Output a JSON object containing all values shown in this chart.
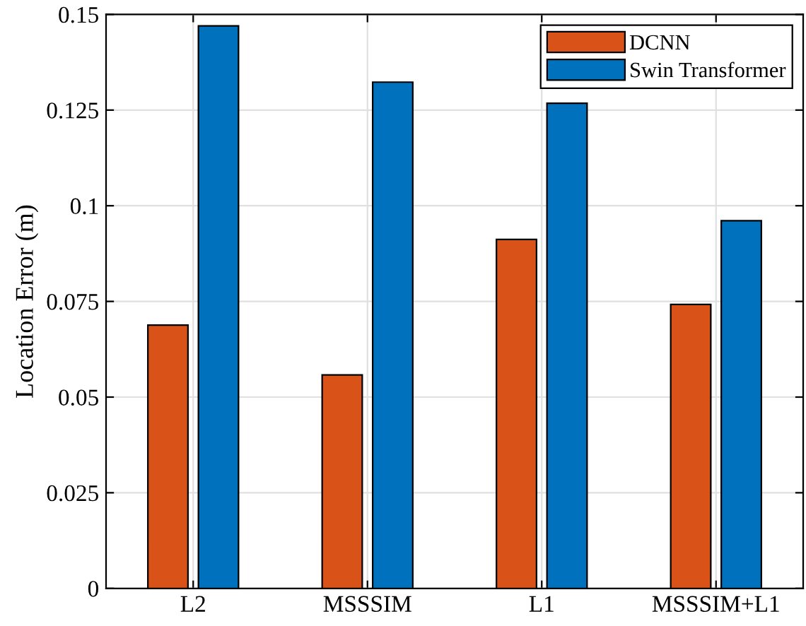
{
  "chart_data": {
    "type": "bar",
    "ylabel": "Location Error (m)",
    "categories": [
      "L2",
      "MSSSIM",
      "L1",
      "MSSSIM+L1"
    ],
    "series": [
      {
        "name": "DCNN",
        "color": "#d95319",
        "values": [
          0.0688,
          0.0558,
          0.0912,
          0.0742
        ]
      },
      {
        "name": "Swin Transformer",
        "color": "#0072bd",
        "values": [
          0.147,
          0.1323,
          0.1268,
          0.0961
        ]
      }
    ],
    "ylim": [
      0,
      0.15
    ],
    "yticks": [
      0,
      0.025,
      0.05,
      0.075,
      0.1,
      0.125,
      0.15
    ],
    "grid": true,
    "legend": "top right"
  }
}
